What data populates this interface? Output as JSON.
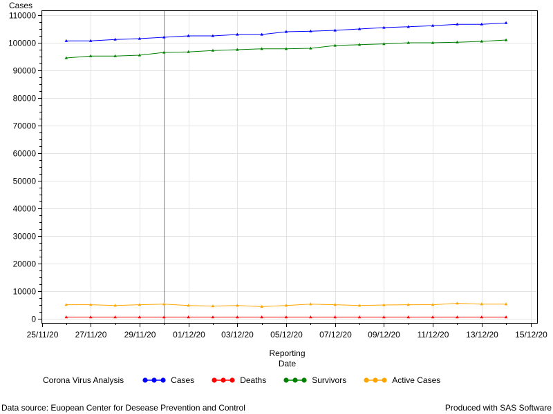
{
  "chart_data": {
    "type": "line",
    "ylabel": "Cases",
    "xlabel_line1": "Reporting",
    "xlabel_line2": "Date",
    "ylim": [
      0,
      110000
    ],
    "y_ticks": [
      0,
      10000,
      20000,
      30000,
      40000,
      50000,
      60000,
      70000,
      80000,
      90000,
      100000,
      110000
    ],
    "x_tick_labels": [
      "25/11/20",
      "27/11/20",
      "29/11/20",
      "01/12/20",
      "03/12/20",
      "05/12/20",
      "07/12/20",
      "09/12/20",
      "11/12/20",
      "13/12/20",
      "15/12/20"
    ],
    "x_range_days": [
      0,
      20
    ],
    "x_tick_days": [
      0,
      2,
      4,
      6,
      8,
      10,
      12,
      14,
      16,
      18,
      20
    ],
    "reference_line_day": 5,
    "grid": true,
    "legend_position": "bottom",
    "series": [
      {
        "name": "Cases",
        "color": "#0000ff",
        "x_days": [
          1,
          2,
          3,
          4,
          5,
          6,
          7,
          8,
          9,
          10,
          11,
          12,
          13,
          14,
          15,
          16,
          17,
          18,
          19
        ],
        "values": [
          100700,
          100700,
          101200,
          101500,
          102000,
          102500,
          102500,
          103000,
          103000,
          104000,
          104200,
          104500,
          105000,
          105500,
          105800,
          106200,
          106700,
          106700,
          107200
        ]
      },
      {
        "name": "Deaths",
        "color": "#ff0000",
        "x_days": [
          1,
          2,
          3,
          4,
          5,
          6,
          7,
          8,
          9,
          10,
          11,
          12,
          13,
          14,
          15,
          16,
          17,
          18,
          19
        ],
        "values": [
          600,
          600,
          600,
          600,
          600,
          600,
          600,
          600,
          600,
          600,
          600,
          600,
          600,
          600,
          600,
          600,
          600,
          600,
          600
        ]
      },
      {
        "name": "Survivors",
        "color": "#008000",
        "x_days": [
          1,
          2,
          3,
          4,
          5,
          6,
          7,
          8,
          9,
          10,
          11,
          12,
          13,
          14,
          15,
          16,
          17,
          18,
          19
        ],
        "values": [
          94500,
          95200,
          95200,
          95500,
          96500,
          96700,
          97200,
          97500,
          97800,
          97800,
          98000,
          99000,
          99300,
          99600,
          100000,
          100000,
          100200,
          100500,
          101000
        ]
      },
      {
        "name": "Active Cases",
        "color": "#ffa500",
        "x_days": [
          1,
          2,
          3,
          4,
          5,
          6,
          7,
          8,
          9,
          10,
          11,
          12,
          13,
          14,
          15,
          16,
          17,
          18,
          19
        ],
        "values": [
          5100,
          5100,
          4800,
          5100,
          5300,
          4800,
          4600,
          4800,
          4400,
          4800,
          5300,
          5100,
          4800,
          5000,
          5100,
          5100,
          5600,
          5300,
          5300
        ]
      }
    ]
  },
  "legend": {
    "title": "Corona Virus Analysis"
  },
  "footer": {
    "left": "Data source: Euopean Center for Desease Prevention and Control",
    "right": "Produced with SAS Software"
  }
}
